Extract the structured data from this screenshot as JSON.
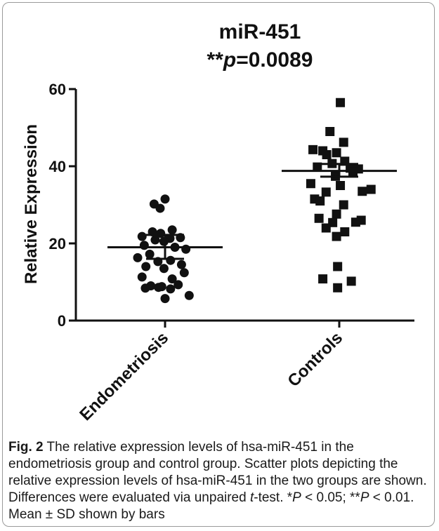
{
  "chart_data": {
    "type": "scatter",
    "title": "miR-451",
    "subtitle_stars": "**",
    "subtitle_p": "p",
    "subtitle_value": "=0.0089",
    "ylabel": "Relative Expression",
    "xlabel": "",
    "ylim": [
      0,
      60
    ],
    "yticks": [
      0,
      20,
      40,
      60
    ],
    "categories": [
      "Endometriosis",
      "Controls"
    ],
    "series": [
      {
        "name": "Endometriosis",
        "marker": "circle",
        "mean": 19.0,
        "sd_low": 16.0,
        "sd_high": 22.2,
        "points": [
          {
            "dx": 0.0,
            "y": 31.5
          },
          {
            "dx": -0.2,
            "y": 30.2
          },
          {
            "dx": -0.09,
            "y": 29.1
          },
          {
            "dx": 0.13,
            "y": 23.5
          },
          {
            "dx": -0.23,
            "y": 23.0
          },
          {
            "dx": -0.08,
            "y": 22.6
          },
          {
            "dx": -0.42,
            "y": 21.8
          },
          {
            "dx": 0.28,
            "y": 21.5
          },
          {
            "dx": 0.09,
            "y": 21.3
          },
          {
            "dx": -0.18,
            "y": 20.9
          },
          {
            "dx": -0.02,
            "y": 20.5
          },
          {
            "dx": -0.38,
            "y": 19.5
          },
          {
            "dx": 0.18,
            "y": 19.0
          },
          {
            "dx": 0.38,
            "y": 18.5
          },
          {
            "dx": -0.28,
            "y": 17.2
          },
          {
            "dx": -0.5,
            "y": 16.3
          },
          {
            "dx": 0.1,
            "y": 15.6
          },
          {
            "dx": -0.13,
            "y": 15.3
          },
          {
            "dx": 0.3,
            "y": 14.5
          },
          {
            "dx": -0.35,
            "y": 14.0
          },
          {
            "dx": -0.02,
            "y": 13.5
          },
          {
            "dx": 0.35,
            "y": 12.4
          },
          {
            "dx": -0.42,
            "y": 11.3
          },
          {
            "dx": 0.13,
            "y": 10.8
          },
          {
            "dx": 0.24,
            "y": 9.3
          },
          {
            "dx": -0.26,
            "y": 9.0
          },
          {
            "dx": -0.06,
            "y": 8.8
          },
          {
            "dx": -0.12,
            "y": 8.6
          },
          {
            "dx": 0.1,
            "y": 8.2
          },
          {
            "dx": -0.36,
            "y": 8.4
          },
          {
            "dx": 0.44,
            "y": 6.5
          },
          {
            "dx": 0.0,
            "y": 5.7
          }
        ]
      },
      {
        "name": "Controls",
        "marker": "square",
        "mean": 38.8,
        "sd_low": 37.3,
        "sd_high": 40.6,
        "points": [
          {
            "dx": 0.02,
            "y": 56.5
          },
          {
            "dx": -0.17,
            "y": 49.0
          },
          {
            "dx": 0.08,
            "y": 46.2
          },
          {
            "dx": -0.48,
            "y": 44.3
          },
          {
            "dx": -0.3,
            "y": 44.0
          },
          {
            "dx": -0.05,
            "y": 43.5
          },
          {
            "dx": -0.23,
            "y": 43.0
          },
          {
            "dx": 0.1,
            "y": 41.3
          },
          {
            "dx": -0.13,
            "y": 40.7
          },
          {
            "dx": -0.4,
            "y": 39.8
          },
          {
            "dx": 0.35,
            "y": 39.3
          },
          {
            "dx": 0.2,
            "y": 39.5
          },
          {
            "dx": 0.25,
            "y": 38.5
          },
          {
            "dx": -0.07,
            "y": 37.4
          },
          {
            "dx": -0.52,
            "y": 35.5
          },
          {
            "dx": 0.02,
            "y": 35.0
          },
          {
            "dx": 0.58,
            "y": 34.0
          },
          {
            "dx": 0.42,
            "y": 33.5
          },
          {
            "dx": -0.24,
            "y": 33.3
          },
          {
            "dx": -0.45,
            "y": 31.5
          },
          {
            "dx": -0.35,
            "y": 31.0
          },
          {
            "dx": 0.08,
            "y": 30.0
          },
          {
            "dx": -0.05,
            "y": 27.6
          },
          {
            "dx": -0.37,
            "y": 26.5
          },
          {
            "dx": 0.4,
            "y": 26.0
          },
          {
            "dx": 0.3,
            "y": 25.5
          },
          {
            "dx": -0.12,
            "y": 25.4
          },
          {
            "dx": -0.24,
            "y": 24.0
          },
          {
            "dx": 0.1,
            "y": 23.0
          },
          {
            "dx": -0.05,
            "y": 21.8
          },
          {
            "dx": -0.03,
            "y": 14.0
          },
          {
            "dx": -0.3,
            "y": 10.8
          },
          {
            "dx": 0.22,
            "y": 10.2
          },
          {
            "dx": -0.03,
            "y": 8.5
          }
        ]
      }
    ]
  },
  "caption": {
    "fig_label": "Fig. 2",
    "text_1": " The relative expression levels of hsa-miR-451 in the endometriosis group and control group. Scatter plots depicting the relative expression levels of hsa-miR-451 in the two groups are shown. Differences were evaluated via unpaired ",
    "t_italic": "t",
    "text_2": "-test. *",
    "p1_italic": "P",
    "text_3": " < 0.05; **",
    "p2_italic": "P",
    "text_4": " < 0.01. Mean ± SD shown by bars"
  },
  "colors": {
    "marker": "#111111",
    "axis": "#111111",
    "text": "#111111"
  }
}
